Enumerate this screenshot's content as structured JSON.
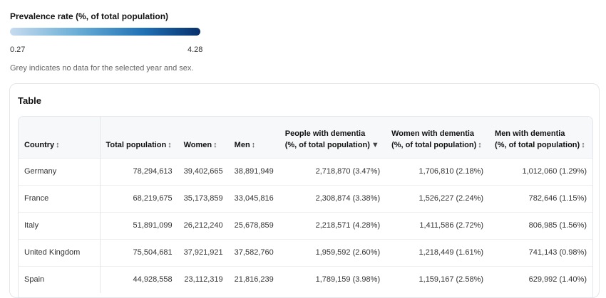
{
  "legend": {
    "title": "Prevalence rate (%, of total population)",
    "min": "0.27",
    "max": "4.28",
    "note": "Grey indicates no data for the selected year and sex."
  },
  "table": {
    "title": "Table",
    "columns": [
      {
        "line1": "Country",
        "line2": "",
        "sort": "↕"
      },
      {
        "line1": "Total population",
        "line2": "",
        "sort": "↕"
      },
      {
        "line1": "Women",
        "line2": "",
        "sort": "↕"
      },
      {
        "line1": "Men",
        "line2": "",
        "sort": "↕"
      },
      {
        "line1": "People with dementia",
        "line2": "(%, of total population)",
        "sort": "▼"
      },
      {
        "line1": "Women with dementia",
        "line2": "(%, of total population)",
        "sort": "↕"
      },
      {
        "line1": "Men with dementia",
        "line2": "(%, of total population)",
        "sort": "↕"
      }
    ],
    "rows": [
      [
        "Germany",
        "78,294,613",
        "39,402,665",
        "38,891,949",
        "2,718,870 (3.47%)",
        "1,706,810 (2.18%)",
        "1,012,060 (1.29%)"
      ],
      [
        "France",
        "68,219,675",
        "35,173,859",
        "33,045,816",
        "2,308,874 (3.38%)",
        "1,526,227 (2.24%)",
        "782,646 (1.15%)"
      ],
      [
        "Italy",
        "51,891,099",
        "26,212,240",
        "25,678,859",
        "2,218,571 (4.28%)",
        "1,411,586 (2.72%)",
        "806,985 (1.56%)"
      ],
      [
        "United Kingdom",
        "75,504,681",
        "37,921,921",
        "37,582,760",
        "1,959,592 (2.60%)",
        "1,218,449 (1.61%)",
        "741,143 (0.98%)"
      ],
      [
        "Spain",
        "44,928,558",
        "23,112,319",
        "21,816,239",
        "1,789,159 (3.98%)",
        "1,159,167 (2.58%)",
        "629,992 (1.40%)"
      ]
    ]
  },
  "colors": {
    "legend_start": "#c6dbef",
    "legend_end": "#08306b"
  }
}
